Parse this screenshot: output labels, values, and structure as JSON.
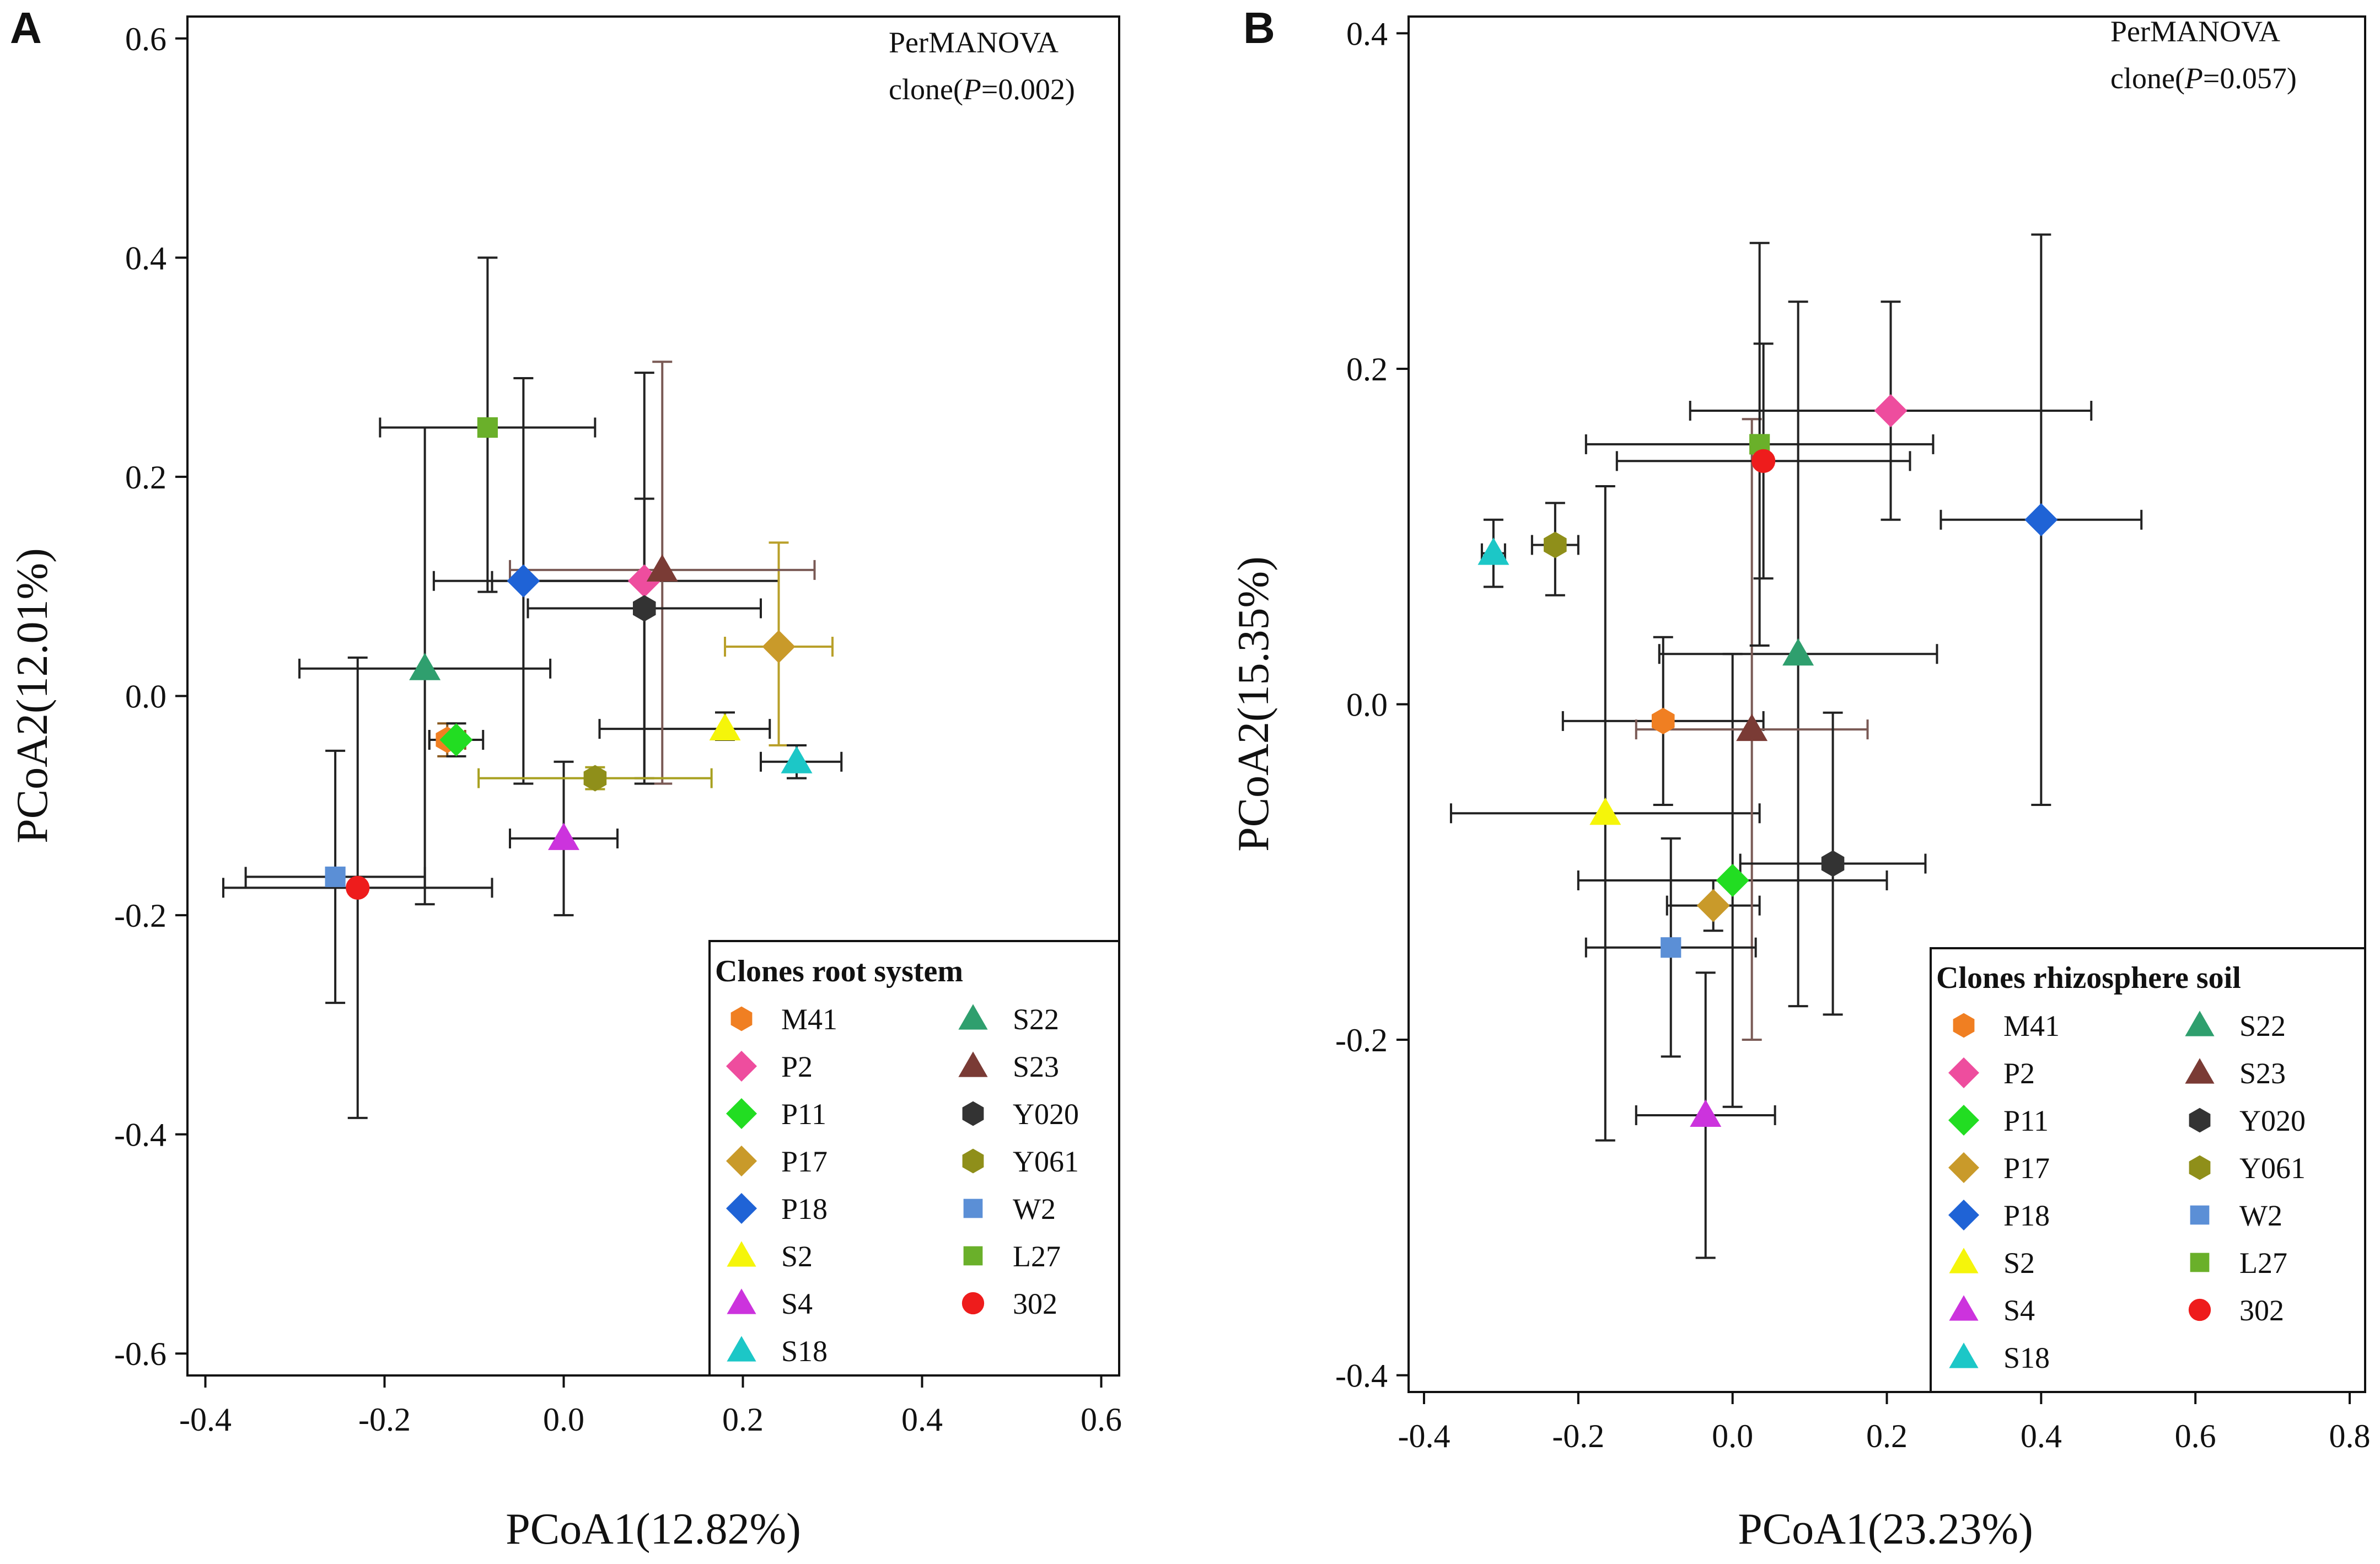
{
  "chart_data": [
    {
      "panel": "A",
      "type": "scatter",
      "xlabel": "PCoA1(12.82%)",
      "ylabel": "PCoA2(12.01%)",
      "xlim": [
        -0.42,
        0.62
      ],
      "ylim": [
        -0.62,
        0.62
      ],
      "xticks": [
        -0.4,
        -0.2,
        0.0,
        0.2,
        0.4,
        0.6
      ],
      "yticks": [
        -0.6,
        -0.4,
        -0.2,
        0.0,
        0.2,
        0.4,
        0.6
      ],
      "annotation": {
        "line1": "PerMANOVA",
        "line2_prefix": "clone(",
        "line2_italic": "P",
        "line2_suffix": "=0.002)"
      },
      "legend": {
        "title": "Clones root system",
        "position": "bottom-right"
      },
      "points": [
        {
          "name": "M41",
          "x": -0.13,
          "y": -0.04,
          "xerr": [
            0.02,
            0.02
          ],
          "yerr": [
            0.015,
            0.015
          ],
          "color": "#f07f22",
          "marker": "hexagon",
          "errcolor": "#8a5a20"
        },
        {
          "name": "P2",
          "x": 0.09,
          "y": 0.105,
          "xerr": [
            0.17,
            0.15
          ],
          "yerr": [
            0.18,
            0.19
          ],
          "color": "#ee4d9e",
          "marker": "diamond",
          "errcolor": "#222222"
        },
        {
          "name": "P11",
          "x": -0.12,
          "y": -0.04,
          "xerr": [
            0.03,
            0.03
          ],
          "yerr": [
            0.015,
            0.015
          ],
          "color": "#22dd22",
          "marker": "diamond",
          "errcolor": "#222222"
        },
        {
          "name": "P17",
          "x": 0.24,
          "y": 0.045,
          "xerr": [
            0.06,
            0.06
          ],
          "yerr": [
            0.09,
            0.095
          ],
          "color": "#c99a2a",
          "marker": "diamond",
          "errcolor": "#b9a02a"
        },
        {
          "name": "P18",
          "x": -0.045,
          "y": 0.105,
          "xerr": [
            0.1,
            0.13
          ],
          "yerr": [
            0.185,
            0.185
          ],
          "color": "#1f63d6",
          "marker": "diamond",
          "errcolor": "#222222"
        },
        {
          "name": "S2",
          "x": 0.18,
          "y": -0.03,
          "xerr": [
            0.14,
            0.05
          ],
          "yerr": [
            0.01,
            0.015
          ],
          "color": "#f5f50a",
          "marker": "triangle",
          "errcolor": "#222222"
        },
        {
          "name": "S4",
          "x": 0.0,
          "y": -0.13,
          "xerr": [
            0.06,
            0.06
          ],
          "yerr": [
            0.07,
            0.07
          ],
          "color": "#cc33dd",
          "marker": "triangle",
          "errcolor": "#222222"
        },
        {
          "name": "S18",
          "x": 0.26,
          "y": -0.06,
          "xerr": [
            0.04,
            0.05
          ],
          "yerr": [
            0.015,
            0.015
          ],
          "color": "#1cc7c7",
          "marker": "triangle",
          "errcolor": "#222222"
        },
        {
          "name": "S22",
          "x": -0.155,
          "y": 0.025,
          "xerr": [
            0.14,
            0.14
          ],
          "yerr": [
            0.215,
            0.22
          ],
          "color": "#2f9f6e",
          "marker": "triangle",
          "errcolor": "#222222"
        },
        {
          "name": "S23",
          "x": 0.11,
          "y": 0.115,
          "xerr": [
            0.17,
            0.17
          ],
          "yerr": [
            0.195,
            0.19
          ],
          "color": "#7a3b35",
          "marker": "triangle",
          "errcolor": "#7a5a55"
        },
        {
          "name": "Y020",
          "x": 0.09,
          "y": 0.08,
          "xerr": [
            0.13,
            0.13
          ],
          "yerr": [
            0.16,
            0.1
          ],
          "color": "#333333",
          "marker": "hexagon",
          "errcolor": "#222222"
        },
        {
          "name": "Y061",
          "x": 0.035,
          "y": -0.075,
          "xerr": [
            0.13,
            0.13
          ],
          "yerr": [
            0.01,
            0.01
          ],
          "color": "#8f8f1a",
          "marker": "hexagon",
          "errcolor": "#a8a020"
        },
        {
          "name": "W2",
          "x": -0.255,
          "y": -0.165,
          "xerr": [
            0.1,
            0.1
          ],
          "yerr": [
            0.115,
            0.115
          ],
          "color": "#5b8fd6",
          "marker": "square",
          "errcolor": "#222222"
        },
        {
          "name": "L27",
          "x": -0.085,
          "y": 0.245,
          "xerr": [
            0.12,
            0.12
          ],
          "yerr": [
            0.15,
            0.155
          ],
          "color": "#6ab02a",
          "marker": "square",
          "errcolor": "#222222"
        },
        {
          "name": "302",
          "x": -0.23,
          "y": -0.175,
          "xerr": [
            0.15,
            0.15
          ],
          "yerr": [
            0.21,
            0.21
          ],
          "color": "#ee1c1c",
          "marker": "circle",
          "errcolor": "#222222"
        }
      ]
    },
    {
      "panel": "B",
      "type": "scatter",
      "xlabel": "PCoA1(23.23%)",
      "ylabel": "PCoA2(15.35%)",
      "xlim": [
        -0.42,
        0.82
      ],
      "ylim": [
        -0.41,
        0.41
      ],
      "xticks": [
        -0.4,
        -0.2,
        0.0,
        0.2,
        0.4,
        0.6,
        0.8
      ],
      "yticks": [
        -0.4,
        -0.2,
        0.0,
        0.2,
        0.4
      ],
      "annotation": {
        "line1": "PerMANOVA",
        "line2_prefix": "clone(",
        "line2_italic": "P",
        "line2_suffix": "=0.057)"
      },
      "legend": {
        "title": "Clones rhizosphere soil",
        "position": "bottom-right"
      },
      "points": [
        {
          "name": "M41",
          "x": -0.09,
          "y": -0.01,
          "xerr": [
            0.13,
            0.13
          ],
          "yerr": [
            0.05,
            0.05
          ],
          "color": "#f07f22",
          "marker": "hexagon",
          "errcolor": "#222222"
        },
        {
          "name": "P2",
          "x": 0.205,
          "y": 0.175,
          "xerr": [
            0.26,
            0.26
          ],
          "yerr": [
            0.065,
            0.065
          ],
          "color": "#ee4d9e",
          "marker": "diamond",
          "errcolor": "#222222"
        },
        {
          "name": "P11",
          "x": 0.0,
          "y": -0.105,
          "xerr": [
            0.2,
            0.2
          ],
          "yerr": [
            0.135,
            0.135
          ],
          "color": "#22dd22",
          "marker": "diamond",
          "errcolor": "#222222"
        },
        {
          "name": "P17",
          "x": -0.025,
          "y": -0.12,
          "xerr": [
            0.06,
            0.06
          ],
          "yerr": [
            0.015,
            0.015
          ],
          "color": "#c99a2a",
          "marker": "diamond",
          "errcolor": "#222222"
        },
        {
          "name": "P18",
          "x": 0.4,
          "y": 0.11,
          "xerr": [
            0.13,
            0.13
          ],
          "yerr": [
            0.17,
            0.17
          ],
          "color": "#1f63d6",
          "marker": "diamond",
          "errcolor": "#222222"
        },
        {
          "name": "S2",
          "x": -0.165,
          "y": -0.065,
          "xerr": [
            0.2,
            0.2
          ],
          "yerr": [
            0.195,
            0.195
          ],
          "color": "#f5f50a",
          "marker": "triangle",
          "errcolor": "#222222"
        },
        {
          "name": "S4",
          "x": -0.035,
          "y": -0.245,
          "xerr": [
            0.09,
            0.09
          ],
          "yerr": [
            0.085,
            0.085
          ],
          "color": "#cc33dd",
          "marker": "triangle",
          "errcolor": "#222222"
        },
        {
          "name": "S18",
          "x": -0.31,
          "y": 0.09,
          "xerr": [
            0.015,
            0.015
          ],
          "yerr": [
            0.02,
            0.02
          ],
          "color": "#1cc7c7",
          "marker": "triangle",
          "errcolor": "#222222"
        },
        {
          "name": "S22",
          "x": 0.085,
          "y": 0.03,
          "xerr": [
            0.18,
            0.18
          ],
          "yerr": [
            0.21,
            0.21
          ],
          "color": "#2f9f6e",
          "marker": "triangle",
          "errcolor": "#222222"
        },
        {
          "name": "S23",
          "x": 0.025,
          "y": -0.015,
          "xerr": [
            0.15,
            0.15
          ],
          "yerr": [
            0.185,
            0.185
          ],
          "color": "#7a3b35",
          "marker": "triangle",
          "errcolor": "#7a5a55"
        },
        {
          "name": "Y020",
          "x": 0.13,
          "y": -0.095,
          "xerr": [
            0.12,
            0.12
          ],
          "yerr": [
            0.09,
            0.09
          ],
          "color": "#333333",
          "marker": "hexagon",
          "errcolor": "#222222"
        },
        {
          "name": "Y061",
          "x": -0.23,
          "y": 0.095,
          "xerr": [
            0.03,
            0.03
          ],
          "yerr": [
            0.03,
            0.025
          ],
          "color": "#8f8f1a",
          "marker": "hexagon",
          "errcolor": "#222222"
        },
        {
          "name": "W2",
          "x": -0.08,
          "y": -0.145,
          "xerr": [
            0.11,
            0.11
          ],
          "yerr": [
            0.065,
            0.065
          ],
          "color": "#5b8fd6",
          "marker": "square",
          "errcolor": "#222222"
        },
        {
          "name": "L27",
          "x": 0.035,
          "y": 0.155,
          "xerr": [
            0.225,
            0.225
          ],
          "yerr": [
            0.12,
            0.12
          ],
          "color": "#6ab02a",
          "marker": "square",
          "errcolor": "#222222"
        },
        {
          "name": "302",
          "x": 0.04,
          "y": 0.145,
          "xerr": [
            0.19,
            0.19
          ],
          "yerr": [
            0.07,
            0.07
          ],
          "color": "#ee1c1c",
          "marker": "circle",
          "errcolor": "#222222"
        }
      ]
    }
  ]
}
